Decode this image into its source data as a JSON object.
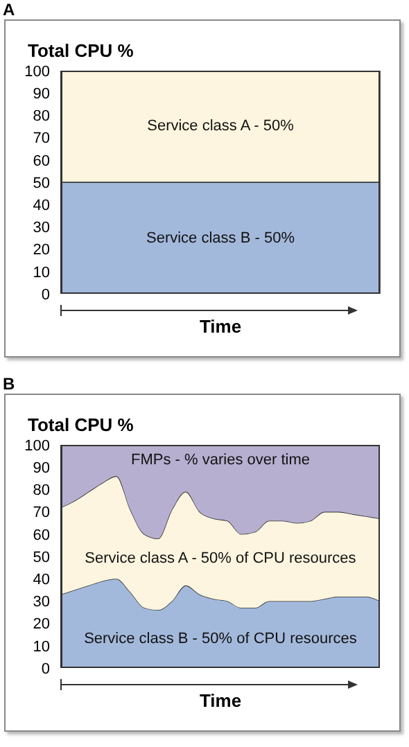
{
  "chart_data": [
    {
      "type": "bar",
      "title": "A",
      "ylabel": "Total CPU %",
      "xlabel": "Time",
      "stacked": true,
      "categories": [
        null
      ],
      "ylim": [
        0,
        100
      ],
      "yticks": [
        0,
        10,
        20,
        30,
        40,
        50,
        60,
        70,
        80,
        90,
        100
      ],
      "tick_labels": "y",
      "series": [
        {
          "name": "Service class B - 50%",
          "color": "#a3b9dc",
          "values": [
            50
          ]
        },
        {
          "name": "Service class A - 50%",
          "color": "#fdf5df",
          "values": [
            50
          ]
        }
      ]
    },
    {
      "type": "area",
      "title": "B",
      "ylabel": "Total CPU %",
      "xlabel": "Time",
      "stacked": true,
      "categories": [
        null,
        null,
        null,
        null,
        null,
        null,
        null,
        null,
        null,
        null,
        null,
        null,
        null,
        null,
        null,
        null,
        null,
        null,
        null,
        null,
        null,
        null,
        null,
        null
      ],
      "ylim": [
        0,
        100
      ],
      "yticks": [
        0,
        10,
        20,
        30,
        40,
        50,
        60,
        70,
        80,
        90,
        100
      ],
      "tick_labels": "y",
      "series": [
        {
          "name": "Service class B - 50% of CPU resources",
          "color": "#a3b9dc",
          "values": [
            33,
            35,
            37,
            39,
            40,
            34,
            27,
            26,
            30,
            37,
            33,
            31,
            30,
            27,
            27,
            30,
            30,
            30,
            30,
            31,
            32,
            32,
            32,
            30
          ]
        },
        {
          "name": "Service class A - 50% of CPU resources",
          "color": "#fdf5df",
          "values": [
            39,
            40,
            42,
            44,
            46,
            37,
            33,
            32,
            41,
            42,
            37,
            36,
            36,
            33,
            34,
            36,
            36,
            35,
            36,
            39,
            38,
            37,
            36,
            37
          ]
        },
        {
          "name": "FMPs - % varies over time",
          "color": "#b7afd0",
          "values": [
            28,
            25,
            21,
            17,
            14,
            29,
            40,
            42,
            29,
            21,
            30,
            33,
            34,
            40,
            39,
            34,
            34,
            35,
            34,
            30,
            30,
            31,
            32,
            33
          ]
        }
      ]
    }
  ]
}
